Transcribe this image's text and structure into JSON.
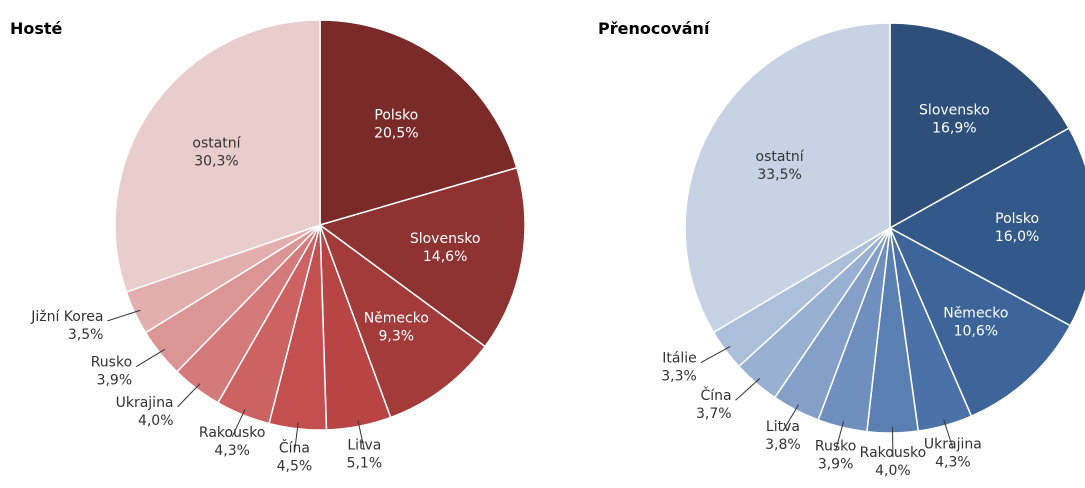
{
  "chart_data": [
    {
      "type": "pie",
      "title": "Hosté",
      "categories": [
        "Polsko",
        "Slovensko",
        "Německo",
        "Litva",
        "Čína",
        "Rakousko",
        "Ukrajina",
        "Rusko",
        "Jižní Korea",
        "ostatní"
      ],
      "values": [
        20.5,
        14.6,
        9.3,
        5.1,
        4.5,
        4.3,
        4.0,
        3.9,
        3.5,
        30.3
      ],
      "value_labels": [
        "20,5%",
        "14,6%",
        "9,3%",
        "5,1%",
        "4,5%",
        "4,3%",
        "4,0%",
        "3,9%",
        "3,5%",
        "30,3%"
      ],
      "colors": [
        "#7b2a2a",
        "#8e3232",
        "#a33b3b",
        "#b84444",
        "#c44f4f",
        "#cc6262",
        "#d47a7a",
        "#db9595",
        "#e2aeae",
        "#e9cccc"
      ]
    },
    {
      "type": "pie",
      "title": "Přenocování",
      "categories": [
        "Slovensko",
        "Polsko",
        "Německo",
        "Ukrajina",
        "Rakousko",
        "Rusko",
        "Litva",
        "Čína",
        "Itálie",
        "ostatní"
      ],
      "values": [
        16.9,
        16.0,
        10.6,
        4.3,
        4.0,
        3.9,
        3.8,
        3.7,
        3.3,
        33.5
      ],
      "value_labels": [
        "16,9%",
        "16,0%",
        "10,6%",
        "4,3%",
        "4,0%",
        "3,9%",
        "3,8%",
        "3,7%",
        "3,3%",
        "33,5%"
      ],
      "colors": [
        "#2e4f7a",
        "#33588a",
        "#3d659a",
        "#4a72a8",
        "#5a80b3",
        "#6f90bf",
        "#84a0c8",
        "#98b0d1",
        "#abbfda",
        "#c7d3e5"
      ]
    }
  ]
}
